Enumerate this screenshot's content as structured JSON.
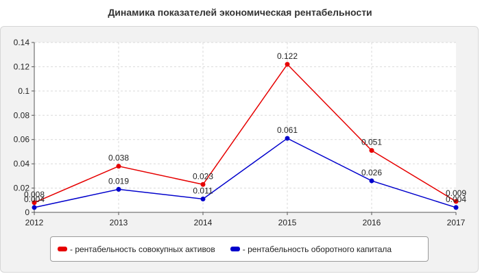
{
  "chart_data": {
    "type": "line",
    "title": "Динамика показателей экономическая рентабельности",
    "x": [
      "2012",
      "2013",
      "2014",
      "2015",
      "2016",
      "2017"
    ],
    "ylim": [
      0,
      0.14
    ],
    "yticks": [
      "0",
      "0.02",
      "0.04",
      "0.06",
      "0.08",
      "0.1",
      "0.12",
      "0.14"
    ],
    "grid": true,
    "legend_position": "bottom",
    "series": [
      {
        "name": "- рентабельность совокупных активов",
        "color": "#e60000",
        "values": [
          0.008,
          0.038,
          0.023,
          0.122,
          0.051,
          0.009
        ],
        "labels": [
          "0.008",
          "0.038",
          "0.023",
          "0.122",
          "0.051",
          "0.009"
        ]
      },
      {
        "name": "- рентабельность оборотного капитала",
        "color": "#0000cc",
        "values": [
          0.004,
          0.019,
          0.011,
          0.061,
          0.026,
          0.004
        ],
        "labels": [
          "0.004",
          "0.019",
          "0.011",
          "0.061",
          "0.026",
          "0.004"
        ]
      }
    ]
  }
}
